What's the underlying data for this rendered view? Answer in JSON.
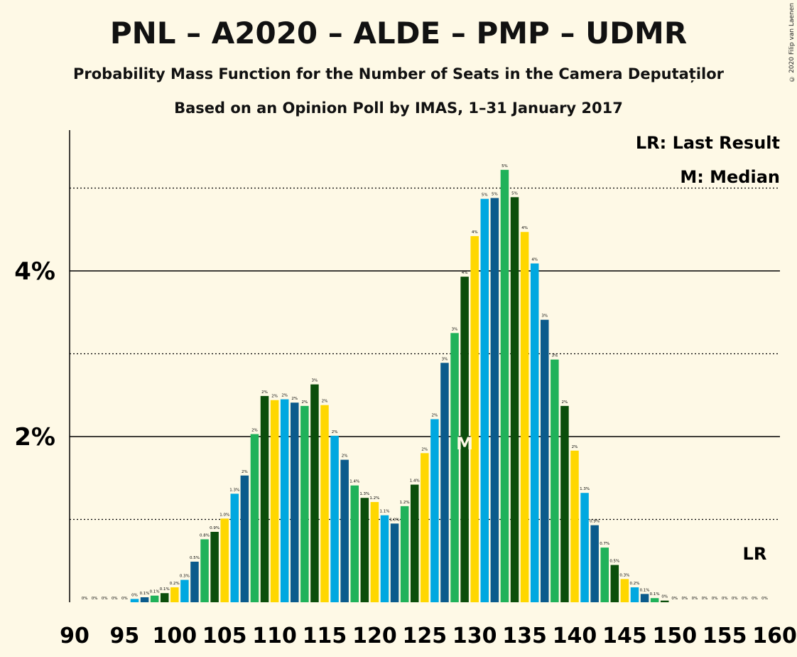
{
  "title": "PNL – A2020 – ALDE – PMP – UDMR",
  "subtitle": "Probability Mass Function for the Number of Seats in the Camera Deputaților",
  "subtitle2": "Based on an Opinion Poll by IMAS, 1–31 January 2017",
  "copyright": "© 2020 Filip van Laenen",
  "legend": {
    "last_result": "LR: Last Result",
    "median": "M: Median"
  },
  "markers": {
    "median_label": "M",
    "median_seat": 129,
    "last_result_label": "LR",
    "last_result_seat": 158
  },
  "colors": {
    "background": "#FEF9E6",
    "cycle": [
      "#FFD700",
      "#00A8E0",
      "#0B5B8C",
      "#20B25A",
      "#0B4E0B"
    ]
  },
  "chart_data": {
    "type": "bar",
    "xlabel": "",
    "ylabel": "",
    "x_ticks": [
      "90",
      "95",
      "100",
      "105",
      "110",
      "115",
      "120",
      "125",
      "130",
      "135",
      "140",
      "145",
      "150",
      "155",
      "160"
    ],
    "y_ticks": [
      "2%",
      "4%"
    ],
    "ylim": [
      0,
      5.6
    ],
    "grid": "major solid at 2% and 4%, minor dotted at 1%, 3%, 5%",
    "x": [
      91,
      92,
      93,
      94,
      95,
      96,
      97,
      98,
      99,
      100,
      101,
      102,
      103,
      104,
      105,
      106,
      107,
      108,
      109,
      110,
      111,
      112,
      113,
      114,
      115,
      116,
      117,
      118,
      119,
      120,
      121,
      122,
      123,
      124,
      125,
      126,
      127,
      128,
      129,
      130,
      131,
      132,
      133,
      134,
      135,
      136,
      137,
      138,
      139,
      140,
      141,
      142,
      143,
      144,
      145,
      146,
      147,
      148,
      149,
      150,
      151,
      152,
      153,
      154,
      155,
      156,
      157,
      158,
      159
    ],
    "values": [
      0,
      0,
      0,
      0,
      0,
      0.04,
      0.06,
      0.08,
      0.11,
      0.18,
      0.27,
      0.49,
      0.76,
      0.85,
      1.01,
      1.31,
      1.53,
      2.03,
      2.49,
      2.44,
      2.45,
      2.41,
      2.37,
      2.63,
      2.38,
      2.01,
      1.72,
      1.41,
      1.26,
      1.21,
      1.05,
      0.95,
      1.16,
      1.42,
      1.8,
      2.21,
      2.89,
      3.25,
      3.93,
      4.42,
      4.87,
      4.88,
      5.22,
      4.89,
      4.47,
      4.09,
      3.41,
      2.93,
      2.37,
      1.83,
      1.32,
      0.93,
      0.66,
      0.45,
      0.28,
      0.18,
      0.1,
      0.05,
      0.02,
      0,
      0,
      0,
      0,
      0,
      0,
      0,
      0,
      0,
      0
    ],
    "data_labels": [
      "0%",
      "0%",
      "0%",
      "0%",
      "0%",
      "0%",
      "0.1%",
      "0.1%",
      "0.1%",
      "0.2%",
      "0.3%",
      "0.5%",
      "0.8%",
      "0.9%",
      "1.0%",
      "1.3%",
      "2%",
      "2%",
      "2%",
      "2%",
      "2%",
      "2%",
      "2%",
      "3%",
      "2%",
      "2%",
      "2%",
      "1.4%",
      "1.3%",
      "1.2%",
      "1.1%",
      "1.0%",
      "1.2%",
      "1.4%",
      "2%",
      "2%",
      "3%",
      "3%",
      "4%",
      "4%",
      "5%",
      "5%",
      "5%",
      "5%",
      "4%",
      "4%",
      "3%",
      "3%",
      "2%",
      "2%",
      "1.3%",
      "0.9%",
      "0.7%",
      "0.5%",
      "0.3%",
      "0.2%",
      "0.1%",
      "0.1%",
      "0%",
      "0%",
      "0%",
      "0%",
      "0%",
      "0%",
      "0%",
      "0%",
      "0%",
      "0%",
      "0%"
    ]
  }
}
